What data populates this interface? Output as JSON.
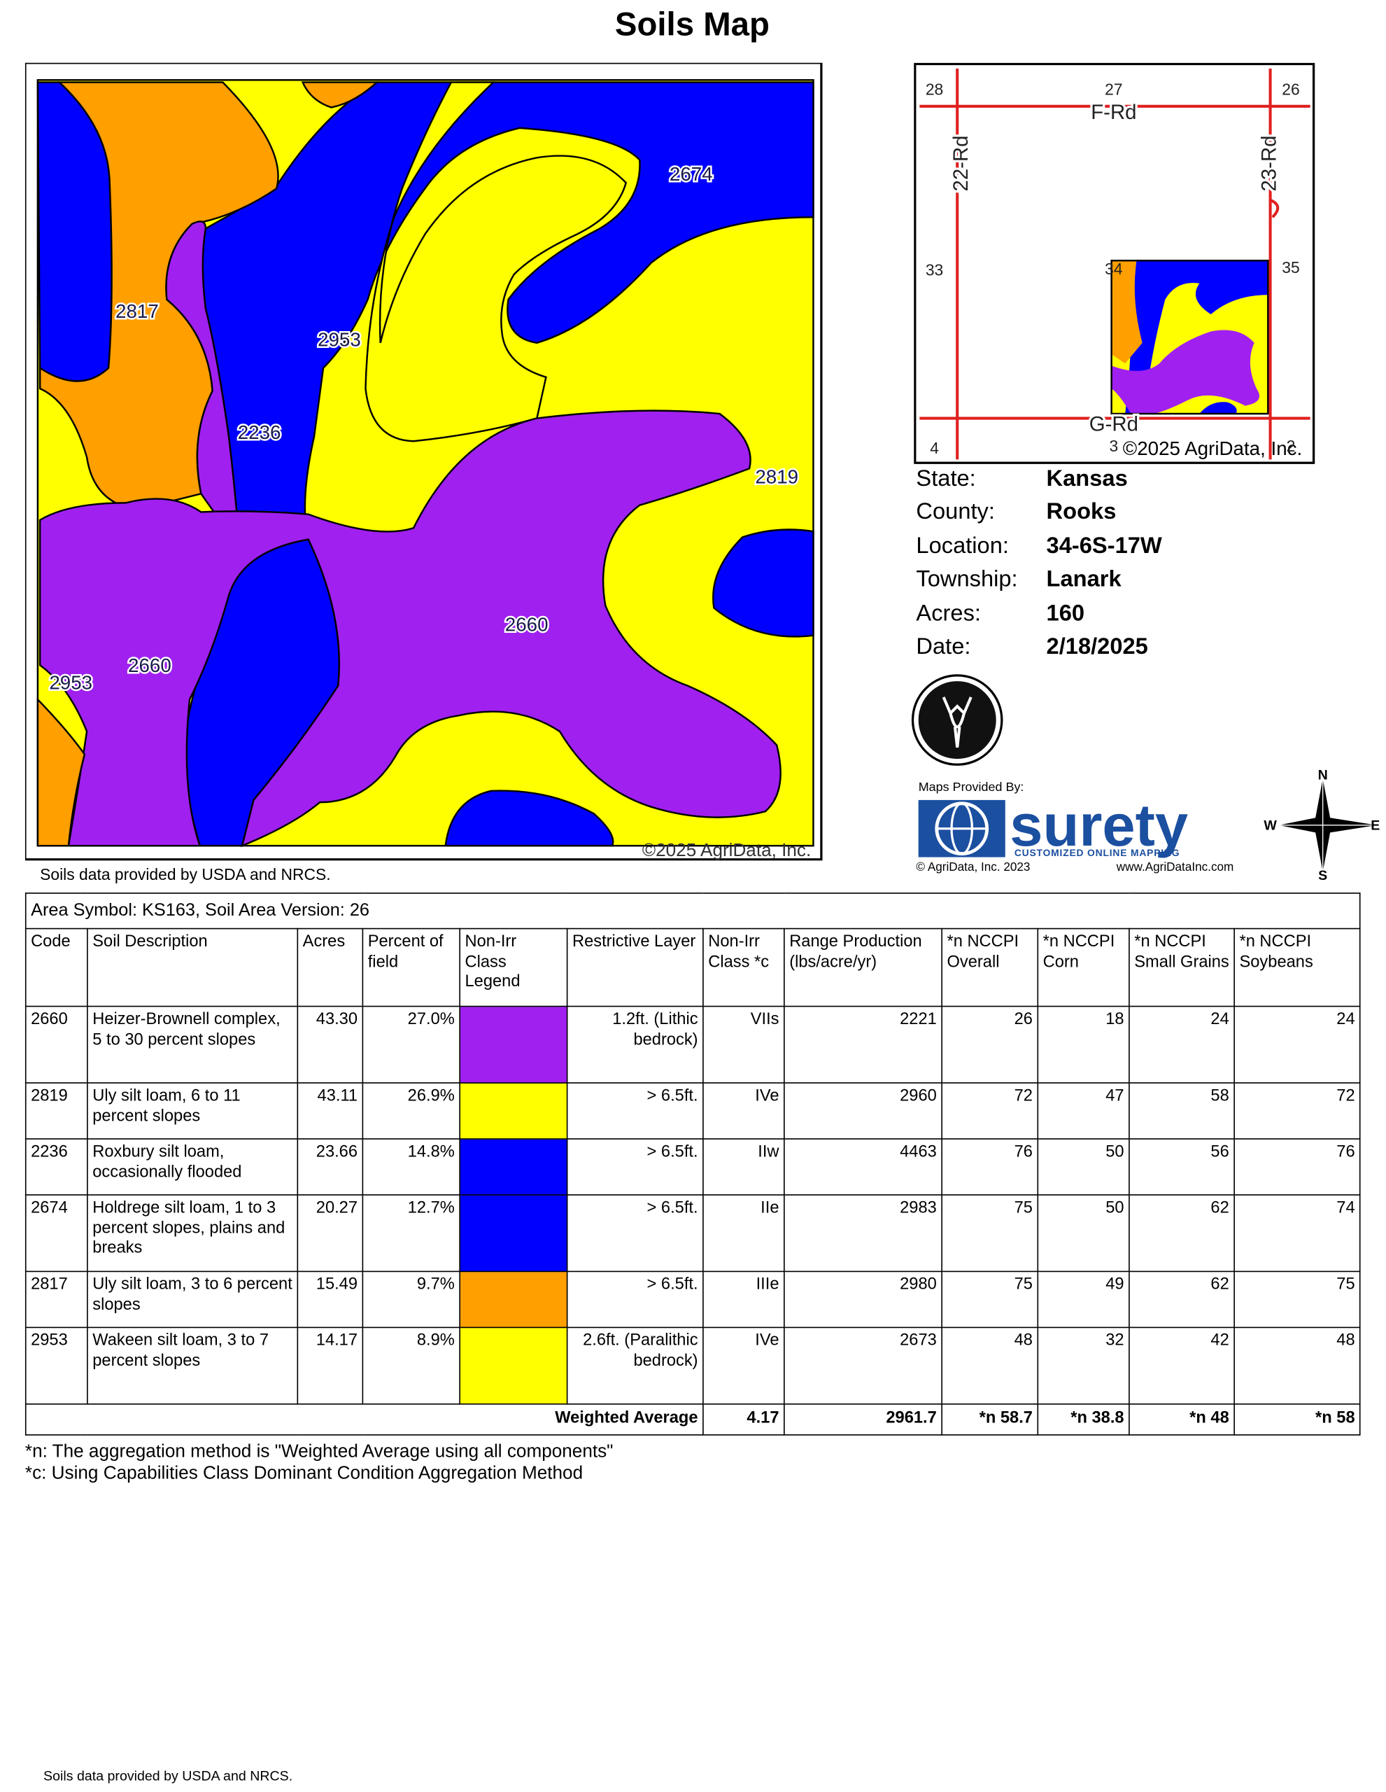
{
  "header": {
    "title": "Soils Map"
  },
  "map": {
    "labels": [
      "2674",
      "2817",
      "2953",
      "2236",
      "2819",
      "2660",
      "2660",
      "2953"
    ],
    "copyright": "©2025 AgriData, Inc.",
    "source": "Soils data provided by USDA and NRCS."
  },
  "inset": {
    "labels": [
      "28",
      "27",
      "26",
      "F-Rd",
      "22-Rd",
      "23-Rd",
      "33",
      "34",
      "35",
      "4",
      "3",
      "2",
      "G-Rd"
    ],
    "copyright": "©2025 AgriData, Inc."
  },
  "info": [
    {
      "label": "State:",
      "value": "Kansas"
    },
    {
      "label": "County:",
      "value": "Rooks"
    },
    {
      "label": "Location:",
      "value": "34-6S-17W"
    },
    {
      "label": "Township:",
      "value": "Lanark"
    },
    {
      "label": "Acres:",
      "value": "160"
    },
    {
      "label": "Date:",
      "value": "2/18/2025"
    }
  ],
  "branding": {
    "maps_by": "Maps Provided By:",
    "brand": "surety",
    "tagline": "CUSTOMIZED ONLINE MAPPING",
    "copyright": "© AgriData, Inc. 2023",
    "url": "www.AgriDataInc.com",
    "compass": [
      "N",
      "E",
      "S",
      "W"
    ]
  },
  "table": {
    "caption": "Area Symbol: KS163, Soil Area Version: 26",
    "headers": [
      "Code",
      "Soil Description",
      "Acres",
      "Percent of field",
      "Non-Irr Class Legend",
      "Restrictive Layer",
      "Non-Irr Class *c",
      "Range Production (lbs/acre/yr)",
      "*n NCCPI Overall",
      "*n NCCPI Corn",
      "*n NCCPI Small Grains",
      "*n NCCPI Soybeans"
    ],
    "rows": [
      [
        "2660",
        "Heizer-Brownell complex, 5 to 30 percent slopes",
        "43.30",
        "27.0%",
        "1.2ft. (Lithic bedrock)",
        "VIIs",
        "2221",
        "26",
        "18",
        "24",
        "24"
      ],
      [
        "2819",
        "Uly silt loam, 6 to 11 percent slopes",
        "43.11",
        "26.9%",
        "> 6.5ft.",
        "IVe",
        "2960",
        "72",
        "47",
        "58",
        "72"
      ],
      [
        "2236",
        "Roxbury silt loam, occasionally flooded",
        "23.66",
        "14.8%",
        "> 6.5ft.",
        "IIw",
        "4463",
        "76",
        "50",
        "56",
        "76"
      ],
      [
        "2674",
        "Holdrege silt loam, 1 to 3 percent slopes, plains and breaks",
        "20.27",
        "12.7%",
        "> 6.5ft.",
        "IIe",
        "2983",
        "75",
        "50",
        "62",
        "74"
      ],
      [
        "2817",
        "Uly silt loam, 3 to 6 percent slopes",
        "15.49",
        "9.7%",
        "> 6.5ft.",
        "IIIe",
        "2980",
        "75",
        "49",
        "62",
        "75"
      ],
      [
        "2953",
        "Wakeen silt loam, 3 to 7 percent slopes",
        "14.17",
        "8.9%",
        "2.6ft. (Paralithic bedrock)",
        "IVe",
        "2673",
        "48",
        "32",
        "42",
        "48"
      ]
    ],
    "legend_colors": [
      "#a020f0",
      "#ffff00",
      "#0000ff",
      "#0000ff",
      "#ff9f00",
      "#ffff00"
    ],
    "footer": {
      "label": "Weighted Average",
      "values": [
        "4.17",
        "2961.7",
        "*n 58.7",
        "*n 38.8",
        "*n 48",
        "*n 58"
      ]
    }
  },
  "footnotes": [
    "*n: The aggregation method is \"Weighted Average using all components\"",
    "*c: Using Capabilities Class Dominant Condition Aggregation Method"
  ],
  "footer": "Soils data provided by USDA and NRCS."
}
